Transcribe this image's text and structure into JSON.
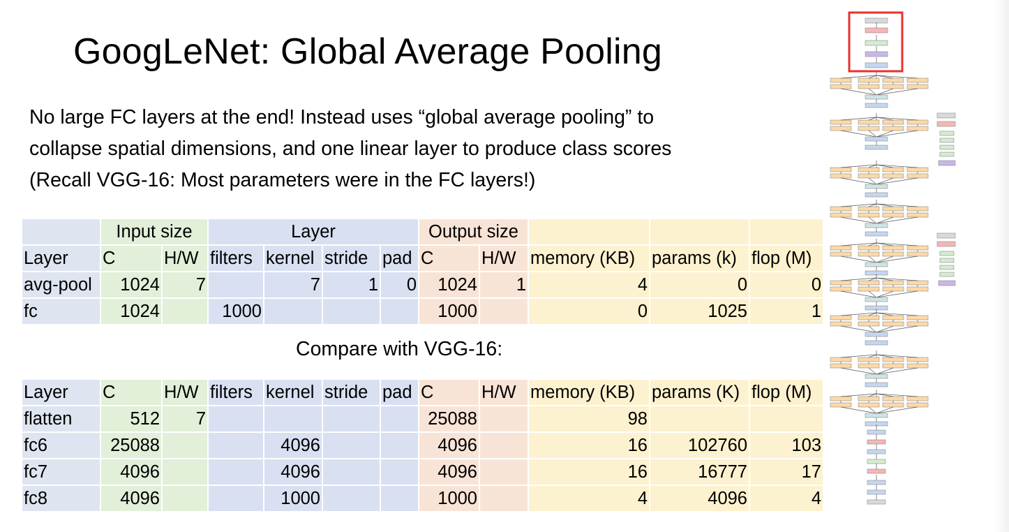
{
  "title": "GoogLeNet: Global Average Pooling",
  "description": [
    "No large FC layers at the end! Instead uses “global average pooling” to",
    "collapse spatial dimensions, and one linear layer to produce class scores",
    "(Recall VGG-16: Most parameters were in the FC layers!)"
  ],
  "table1": {
    "groups": {
      "input": "Input size",
      "layer": "Layer",
      "output": "Output size"
    },
    "headers": [
      "Layer",
      "C",
      "H/W",
      "filters",
      "kernel",
      "stride",
      "pad",
      "C",
      "H/W",
      "memory (KB)",
      "params (k)",
      "flop (M)"
    ],
    "rows": [
      [
        "avg-pool",
        "1024",
        "7",
        "",
        "7",
        "1",
        "0",
        "1024",
        "1",
        "4",
        "0",
        "0"
      ],
      [
        "fc",
        "1024",
        "",
        "1000",
        "",
        "",
        "",
        "1000",
        "",
        "0",
        "1025",
        "1"
      ]
    ]
  },
  "compare_label": "Compare with VGG-16:",
  "table2": {
    "headers": [
      "Layer",
      "C",
      "H/W",
      "filters",
      "kernel",
      "stride",
      "pad",
      "C",
      "H/W",
      "memory (KB)",
      "params (K)",
      "flop (M)"
    ],
    "rows": [
      [
        "flatten",
        "512",
        "7",
        "",
        "",
        "",
        "",
        "25088",
        "",
        "98",
        "",
        ""
      ],
      [
        "fc6",
        "25088",
        "",
        "",
        "4096",
        "",
        "",
        "4096",
        "",
        "16",
        "102760",
        "103"
      ],
      [
        "fc7",
        "4096",
        "",
        "",
        "4096",
        "",
        "",
        "4096",
        "",
        "16",
        "16777",
        "17"
      ],
      [
        "fc8",
        "4096",
        "",
        "",
        "1000",
        "",
        "",
        "1000",
        "",
        "4",
        "4096",
        "4"
      ]
    ]
  },
  "colors": {
    "highlight_box": "#e8322b",
    "inception_block": "#fcd9a8",
    "pool_block": "#c6d6f0",
    "norm_block": "#f4b6b6",
    "conv_block": "#d4ecd0",
    "concat_block": "#cfe4e4",
    "softmax_block": "#c9b6ea"
  }
}
